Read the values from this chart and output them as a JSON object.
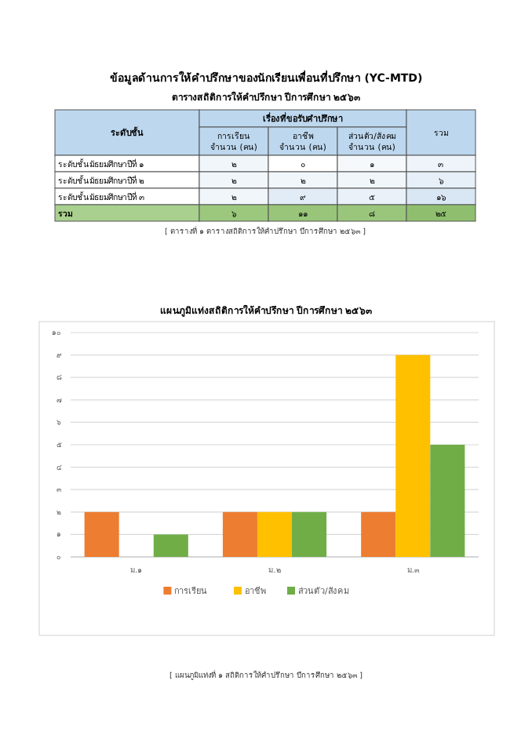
{
  "chart_data": [
    {
      "type": "heatmap",
      "title": "ข้อมูลด้านการให้คำปรึกษาของนักเรียนเพื่อนที่ปรึกษา (YC-MTD)",
      "subtitle": "ตารางสถิติการให้คำปรึกษา ปีการศึกษา ๒๕๖๓",
      "xlabel": "เรื่องที่ขอรับคำปรึกษา",
      "ylabel": "ระดับชั้น",
      "categories": [
        "การเรียน จำนวน (คน)",
        "อาชีพ จำนวน (คน)",
        "ส่วนตัว/สังคม จำนวน (คน)",
        "รวม"
      ],
      "y_categories": [
        "ระดับชั้นมัธยมศึกษาปีที่ ๑",
        "ระดับชั้นมัธยมศึกษาปีที่ ๒",
        "ระดับชั้นมัธยมศึกษาปีที่ ๓",
        "รวม"
      ],
      "cells": [
        [
          2,
          0,
          1,
          3
        ],
        [
          2,
          2,
          2,
          6
        ],
        [
          2,
          9,
          5,
          16
        ],
        [
          6,
          11,
          8,
          25
        ]
      ],
      "cell_labels": [
        [
          "๒",
          "๐",
          "๑",
          "๓"
        ],
        [
          "๒",
          "๒",
          "๒",
          "๖"
        ],
        [
          "๒",
          "๙",
          "๕",
          "๑๖"
        ],
        [
          "๖",
          "๑๑",
          "๘",
          "๒๕"
        ]
      ],
      "annotations": [
        "[ ตารางที่ ๑ ตารางสถิติการให้คำปรึกษา ปีการศึกษา ๒๕๖๓ ]"
      ]
    },
    {
      "type": "bar",
      "title": "แผนภูมิแท่งสถิติการให้คำปรึกษา ปีการศึกษา ๒๕๖๓",
      "categories": [
        "ม.๑",
        "ม.๒",
        "ม.๓"
      ],
      "series": [
        {
          "name": "การเรียน",
          "color": "#ed7d31",
          "values": [
            2,
            2,
            2
          ]
        },
        {
          "name": "อาชีพ",
          "color": "#ffc000",
          "values": [
            0,
            2,
            9
          ]
        },
        {
          "name": "ส่วนตัว/สังคม",
          "color": "#70ad47",
          "values": [
            1,
            2,
            5
          ]
        }
      ],
      "ylim": [
        0,
        10
      ],
      "yticks": [
        {
          "value": 0,
          "label": "๐"
        },
        {
          "value": 1,
          "label": "๑"
        },
        {
          "value": 2,
          "label": "๒"
        },
        {
          "value": 3,
          "label": "๓"
        },
        {
          "value": 4,
          "label": "๔"
        },
        {
          "value": 5,
          "label": "๕"
        },
        {
          "value": 6,
          "label": "๖"
        },
        {
          "value": 7,
          "label": "๗"
        },
        {
          "value": 8,
          "label": "๘"
        },
        {
          "value": 9,
          "label": "๙"
        },
        {
          "value": 10,
          "label": "๑๐"
        }
      ],
      "grid": "y",
      "legend": "bottom",
      "annotations": [
        "[ แผนภูมิแท่งที่ ๑ สถิติการให้คำปรึกษา ปีการศึกษา ๒๕๖๓ ]"
      ]
    }
  ]
}
